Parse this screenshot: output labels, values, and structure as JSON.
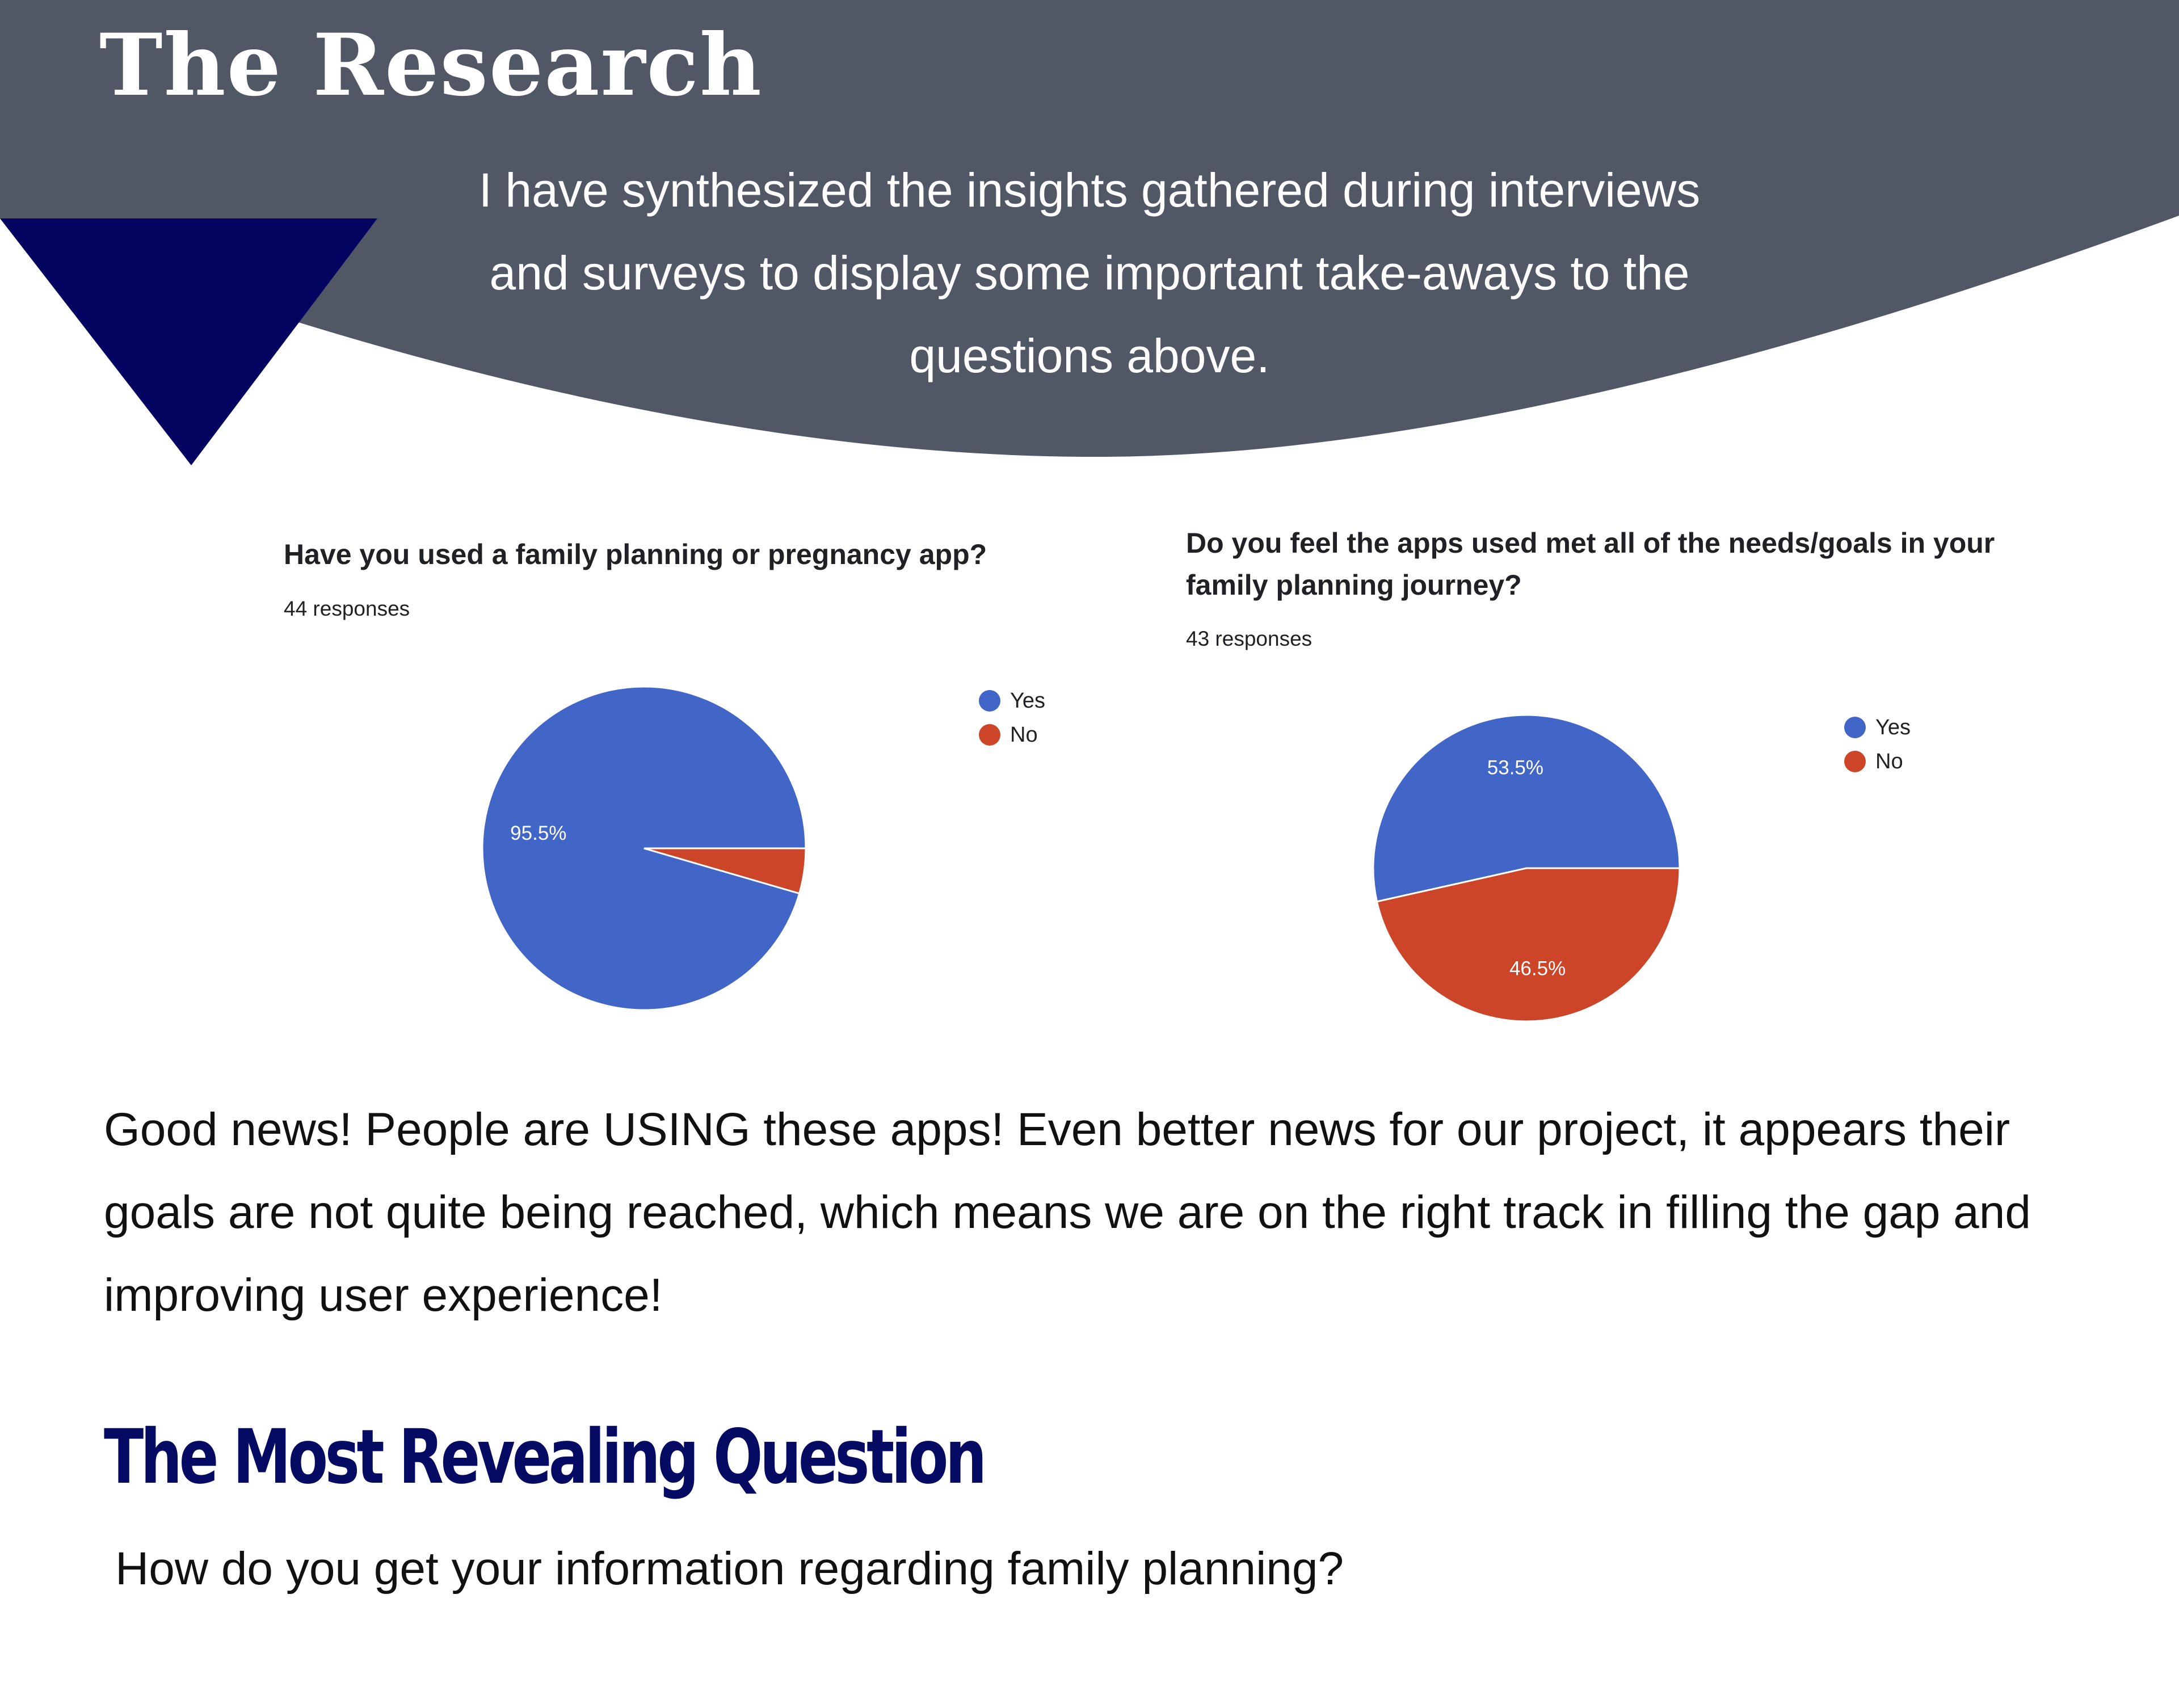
{
  "page": {
    "title": "The Research",
    "intro": "I have synthesized the insights gathered during interviews and surveys to display some important take-aways to the questions above.",
    "body": "Good news! People are USING these apps! Even better news for our project, it appears their goals are not quite being reached, which means we are on the right track in filling the gap and improving user experience!",
    "section_title": "The Most Revealing Question",
    "question": "How do you get your information regarding family planning?"
  },
  "colors": {
    "header_band": "#525766",
    "accent_triangle": "#02045f",
    "section_title": "#050a63",
    "yes": "#4266c8",
    "no": "#cc4528",
    "text": "#111111"
  },
  "chart_data": [
    {
      "type": "pie",
      "title": "Have you used a family planning or pregnancy app?",
      "subtitle": "44 responses",
      "categories": [
        "Yes",
        "No"
      ],
      "values": [
        95.5,
        4.5
      ],
      "data_labels": [
        "95.5%",
        ""
      ],
      "colors": [
        "#4266c8",
        "#cc4528"
      ],
      "legend": "top-right"
    },
    {
      "type": "pie",
      "title": "Do you feel the apps used met all of the needs/goals in your family planning journey?",
      "subtitle": "43 responses",
      "categories": [
        "Yes",
        "No"
      ],
      "values": [
        53.5,
        46.5
      ],
      "data_labels": [
        "53.5%",
        "46.5%"
      ],
      "colors": [
        "#4266c8",
        "#cc4528"
      ],
      "legend": "top-right"
    }
  ]
}
